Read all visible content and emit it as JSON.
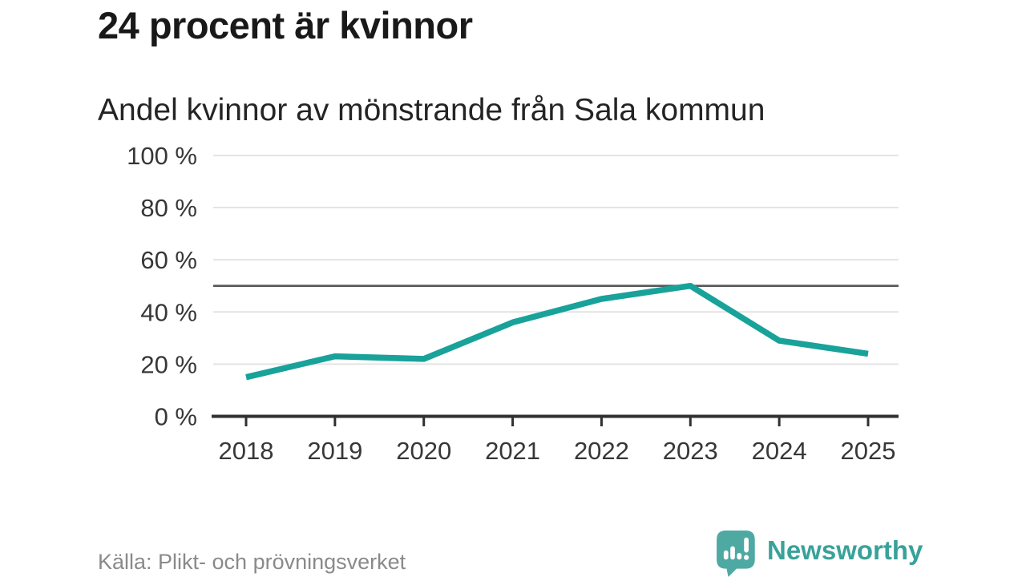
{
  "header": {
    "title": "24 procent är kvinnor",
    "subtitle": "Andel kvinnor av mönstrande från Sala kommun"
  },
  "footer": {
    "source": "Källa: Plikt- och prövningsverket",
    "brand": "Newsworthy"
  },
  "colors": {
    "line": "#18a29a",
    "grid": "#e4e4e4",
    "reference_line": "#57575b",
    "axis": "#303030",
    "tick_text": "#373737",
    "title_text": "#191919",
    "source_text": "#8a8a8a",
    "brand_teal": "#38a29a",
    "brand_icon_teal": "#4fa9a3"
  },
  "chart_data": {
    "type": "line",
    "title": "24 procent är kvinnor",
    "subtitle": "Andel kvinnor av mönstrande från Sala kommun",
    "x": [
      2018,
      2019,
      2020,
      2021,
      2022,
      2023,
      2024,
      2025
    ],
    "series": [
      {
        "name": "Andel kvinnor av mönstrande från Sala kommun",
        "values": [
          15,
          23,
          22,
          36,
          45,
          50,
          29,
          24
        ]
      }
    ],
    "unit": "%",
    "ylim": [
      0,
      100
    ],
    "yticks": [
      0,
      20,
      40,
      60,
      80,
      100
    ],
    "ytick_suffix": " %",
    "reference_line": 50,
    "grid": "horizontal",
    "legend": "none",
    "source": "Källa: Plikt- och prövningsverket"
  }
}
